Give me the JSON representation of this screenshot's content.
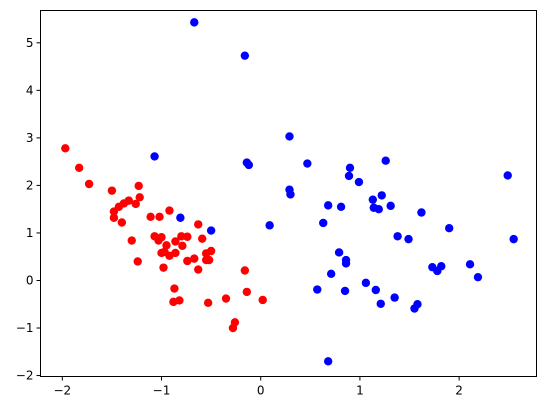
{
  "chart_data": {
    "type": "scatter",
    "title": "",
    "xlabel": "",
    "ylabel": "",
    "xlim": [
      -2.22,
      2.78
    ],
    "ylim": [
      -2.02,
      5.68
    ],
    "x_ticks": [
      -2,
      -1,
      0,
      1,
      2
    ],
    "y_ticks": [
      -2,
      -1,
      0,
      1,
      2,
      3,
      4,
      5
    ],
    "x_tick_labels": [
      "−2",
      "−1",
      "0",
      "1",
      "2"
    ],
    "y_tick_labels": [
      "−2",
      "−1",
      "0",
      "1",
      "2",
      "3",
      "4",
      "5"
    ],
    "grid": false,
    "legend": null,
    "series": [
      {
        "color": "#ff0000",
        "points": [
          [
            -1.97,
            2.78
          ],
          [
            -1.83,
            2.37
          ],
          [
            -1.73,
            2.03
          ],
          [
            -1.5,
            1.89
          ],
          [
            -1.23,
            1.99
          ],
          [
            -1.48,
            1.45
          ],
          [
            -1.48,
            1.32
          ],
          [
            -1.43,
            1.55
          ],
          [
            -1.38,
            1.62
          ],
          [
            -1.33,
            1.68
          ],
          [
            -1.26,
            1.61
          ],
          [
            -1.22,
            1.75
          ],
          [
            -1.4,
            1.22
          ],
          [
            -1.11,
            1.34
          ],
          [
            -1.02,
            1.34
          ],
          [
            -0.92,
            1.47
          ],
          [
            -1.3,
            0.84
          ],
          [
            -1.24,
            0.4
          ],
          [
            -1.07,
            0.93
          ],
          [
            -1.0,
            0.91
          ],
          [
            -1.03,
            0.84
          ],
          [
            -0.95,
            0.74
          ],
          [
            -0.86,
            0.82
          ],
          [
            -0.8,
            0.93
          ],
          [
            -0.74,
            0.92
          ],
          [
            -0.97,
            0.6
          ],
          [
            -1.0,
            0.58
          ],
          [
            -0.92,
            0.52
          ],
          [
            -0.86,
            0.58
          ],
          [
            -0.79,
            0.73
          ],
          [
            -0.74,
            0.41
          ],
          [
            -0.67,
            0.46
          ],
          [
            -0.98,
            0.27
          ],
          [
            -0.63,
            0.23
          ],
          [
            -0.63,
            1.18
          ],
          [
            -0.59,
            0.88
          ],
          [
            -0.55,
            0.57
          ],
          [
            -0.55,
            0.43
          ],
          [
            -0.52,
            0.43
          ],
          [
            -0.5,
            0.62
          ],
          [
            -0.87,
            -0.17
          ],
          [
            -0.88,
            -0.45
          ],
          [
            -0.82,
            -0.42
          ],
          [
            -0.53,
            -0.47
          ],
          [
            -0.35,
            -0.38
          ],
          [
            -0.26,
            -0.88
          ],
          [
            -0.28,
            -1.0
          ],
          [
            -0.16,
            0.21
          ],
          [
            -0.14,
            -0.24
          ],
          [
            0.02,
            -0.41
          ]
        ]
      },
      {
        "color": "#0000ff",
        "points": [
          [
            -0.67,
            5.43
          ],
          [
            -0.16,
            4.73
          ],
          [
            -1.07,
            2.61
          ],
          [
            -0.81,
            1.32
          ],
          [
            -0.5,
            1.05
          ],
          [
            -0.14,
            2.48
          ],
          [
            -0.12,
            2.43
          ],
          [
            0.09,
            1.16
          ],
          [
            0.29,
            3.03
          ],
          [
            0.29,
            1.91
          ],
          [
            0.3,
            1.81
          ],
          [
            0.47,
            2.46
          ],
          [
            0.63,
            1.21
          ],
          [
            0.68,
            1.58
          ],
          [
            0.81,
            1.55
          ],
          [
            0.9,
            2.37
          ],
          [
            0.89,
            2.2
          ],
          [
            0.99,
            2.07
          ],
          [
            1.13,
            1.7
          ],
          [
            1.14,
            1.53
          ],
          [
            1.19,
            1.5
          ],
          [
            1.22,
            1.79
          ],
          [
            1.26,
            2.52
          ],
          [
            1.31,
            1.57
          ],
          [
            1.38,
            0.93
          ],
          [
            1.49,
            0.87
          ],
          [
            1.62,
            1.43
          ],
          [
            1.73,
            0.28
          ],
          [
            1.78,
            0.2
          ],
          [
            1.82,
            0.3
          ],
          [
            1.9,
            1.1
          ],
          [
            2.11,
            0.34
          ],
          [
            2.19,
            0.07
          ],
          [
            2.49,
            2.21
          ],
          [
            2.55,
            0.87
          ],
          [
            0.79,
            0.59
          ],
          [
            0.86,
            0.43
          ],
          [
            0.86,
            0.36
          ],
          [
            0.71,
            0.14
          ],
          [
            1.06,
            -0.05
          ],
          [
            0.57,
            -0.19
          ],
          [
            0.85,
            -0.22
          ],
          [
            1.16,
            -0.2
          ],
          [
            1.21,
            -0.49
          ],
          [
            1.35,
            -0.36
          ],
          [
            1.55,
            -0.59
          ],
          [
            1.58,
            -0.5
          ],
          [
            0.68,
            -1.7
          ]
        ]
      }
    ]
  }
}
